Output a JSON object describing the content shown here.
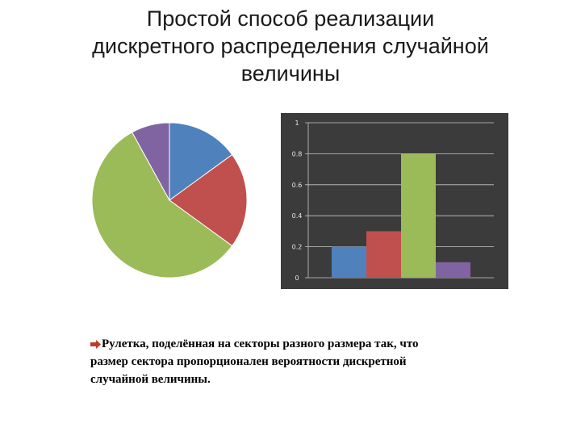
{
  "slide": {
    "title_lines": [
      "Простой способ реализации",
      "дискретного распределения случайной",
      "величины"
    ],
    "caption_lines": [
      "Рулетка, поделённая на секторы разного размера так, что",
      "размер сектора пропорционален вероятности дискретной",
      "случайной величины."
    ]
  },
  "colors": {
    "blue": "#4F81BD",
    "red": "#C0504D",
    "green": "#9BBB59",
    "purple": "#8064A2",
    "bar_background": "#3b3b3b",
    "bullet": "#C0392B"
  },
  "chart_data": [
    {
      "type": "pie",
      "values": [
        0.15,
        0.2,
        0.57,
        0.08
      ],
      "colors": [
        "#4F81BD",
        "#C0504D",
        "#9BBB59",
        "#8064A2"
      ],
      "start": "top, clockwise"
    },
    {
      "type": "bar",
      "categories": [
        "",
        "",
        "",
        ""
      ],
      "values": [
        0.2,
        0.3,
        0.8,
        0.1
      ],
      "colors": [
        "#4F81BD",
        "#C0504D",
        "#9BBB59",
        "#8064A2"
      ],
      "ylim": [
        0,
        1
      ],
      "yticks": [
        "0",
        "0.2",
        "0.4",
        "0.6",
        "0.8",
        "1"
      ],
      "grid": true,
      "background": "dark"
    }
  ]
}
